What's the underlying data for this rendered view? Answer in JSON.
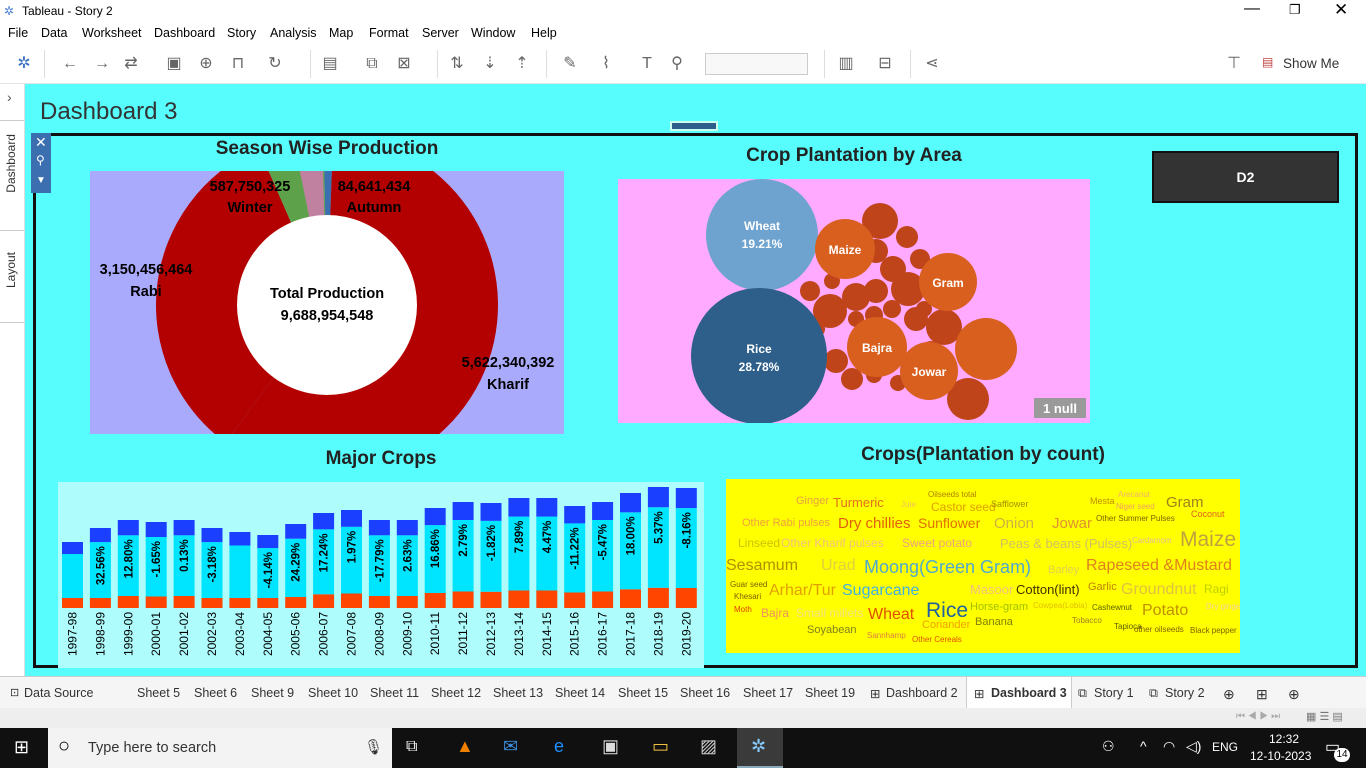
{
  "window": {
    "title": "Tableau - Story 2"
  },
  "menu": [
    "File",
    "Data",
    "Worksheet",
    "Dashboard",
    "Story",
    "Analysis",
    "Map",
    "Format",
    "Server",
    "Window",
    "Help"
  ],
  "toolbar": {
    "show_me": "Show Me"
  },
  "leftrail": {
    "dashboard_tab": "Dashboard",
    "layout_tab": "Layout"
  },
  "dashboard": {
    "title": "Dashboard 3",
    "d2_button": "D2"
  },
  "colors": {
    "canvas": "#57fdfd",
    "kharif": "#b30000",
    "winter": "#5da24b",
    "autumn": "#3a6fb0",
    "rabi_band": "#c080a0",
    "wheat_rice": "#2d5f8a",
    "orange": "#d95f1e",
    "bar_blue": "#1a3fff",
    "bar_cyan": "#00e5ff",
    "bar_orange": "#ff4500",
    "wordcloud_bg": "#ffff00"
  },
  "season_chart": {
    "title": "Season Wise Production",
    "center_label": "Total Production",
    "total": "9,688,954,548",
    "slices": [
      {
        "season": "Kharif",
        "value": "5,622,340,392",
        "num": 5622340392
      },
      {
        "season": "Rabi",
        "value": "3,150,456,464",
        "num": 3150456464
      },
      {
        "season": "Winter",
        "value": "587,750,325",
        "num": 587750325
      },
      {
        "season": "Autumn",
        "value": "84,641,434",
        "num": 84641434
      }
    ]
  },
  "crop_area": {
    "title": "Crop Plantation by Area",
    "bubbles": [
      {
        "name": "Wheat",
        "pct": "19.21%"
      },
      {
        "name": "Rice",
        "pct": "28.78%"
      },
      {
        "name": "Maize",
        "pct": ""
      },
      {
        "name": "Gram",
        "pct": ""
      },
      {
        "name": "Bajra",
        "pct": ""
      },
      {
        "name": "Jowar",
        "pct": ""
      }
    ],
    "null_badge": "1 null"
  },
  "major_crops": {
    "title": "Major Crops",
    "years": [
      "1997-98",
      "1998-99",
      "1999-00",
      "2000-01",
      "2001-02",
      "2002-03",
      "2003-04",
      "2004-05",
      "2005-06",
      "2006-07",
      "2007-08",
      "2008-09",
      "2009-10",
      "2010-11",
      "2011-12",
      "2012-13",
      "2013-14",
      "2014-15",
      "2015-16",
      "2016-17",
      "2017-18",
      "2018-19",
      "2019-20"
    ],
    "labels": [
      "",
      "32.56%",
      "12.80%",
      "-1.65%",
      "0.13%",
      "-3.18%",
      "",
      "-4.14%",
      "24.29%",
      "17.24%",
      "1.97%",
      "-17.79%",
      "2.63%",
      "16.86%",
      "2.79%",
      "-1.82%",
      "7.89%",
      "4.47%",
      "-11.22%",
      "-5.47%",
      "18.00%",
      "5.37%",
      "-8.16%"
    ],
    "heights": [
      66,
      80,
      88,
      86,
      88,
      80,
      76,
      73,
      84,
      95,
      98,
      88,
      88,
      100,
      106,
      105,
      110,
      110,
      102,
      106,
      115,
      121,
      120
    ]
  },
  "crops_count": {
    "title": "Crops(Plantation by count)",
    "words": [
      {
        "t": "Ginger",
        "c": "#e8a040",
        "s": 11
      },
      {
        "t": "Turmeric",
        "c": "#e07020",
        "s": 13
      },
      {
        "t": "Jute",
        "c": "#f0c060",
        "s": 8
      },
      {
        "t": "Oilseeds total",
        "c": "#b08000",
        "s": 8
      },
      {
        "t": "Castor seed",
        "c": "#e0a000",
        "s": 12
      },
      {
        "t": "Safflower",
        "c": "#a09000",
        "s": 9
      },
      {
        "t": "Mesta",
        "c": "#c09000",
        "s": 9
      },
      {
        "t": "Arecanut",
        "c": "#f0b070",
        "s": 8
      },
      {
        "t": "Niger seed",
        "c": "#f0a060",
        "s": 8
      },
      {
        "t": "Gram",
        "c": "#a08020",
        "s": 15
      },
      {
        "t": "Coconut",
        "c": "#e06020",
        "s": 9
      },
      {
        "t": "Other Rabi pulses",
        "c": "#f0a040",
        "s": 11
      },
      {
        "t": "Dry chillies",
        "c": "#e06010",
        "s": 15
      },
      {
        "t": "Sunflower",
        "c": "#e07000",
        "s": 14
      },
      {
        "t": "Onion",
        "c": "#d0b040",
        "s": 15
      },
      {
        "t": "Jowar",
        "c": "#e09030",
        "s": 15
      },
      {
        "t": "Other Summer Pulses",
        "c": "#806000",
        "s": 8
      },
      {
        "t": "Linseed",
        "c": "#d0c000",
        "s": 12
      },
      {
        "t": "Other Kharif pulses",
        "c": "#f0c080",
        "s": 12
      },
      {
        "t": "Sweet potato",
        "c": "#f0a080",
        "s": 12
      },
      {
        "t": "Peas & beans (Pulses)",
        "c": "#d0c060",
        "s": 13
      },
      {
        "t": "Cardamom",
        "c": "#e0c090",
        "s": 8
      },
      {
        "t": "Maize",
        "c": "#c0a040",
        "s": 21
      },
      {
        "t": "Sesamum",
        "c": "#b09000",
        "s": 16
      },
      {
        "t": "Urad",
        "c": "#e0d040",
        "s": 16
      },
      {
        "t": "Moong(Green Gram)",
        "c": "#50a8d0",
        "s": 18
      },
      {
        "t": "Barley",
        "c": "#e0d050",
        "s": 11
      },
      {
        "t": "Rapeseed &Mustard",
        "c": "#e08020",
        "s": 16
      },
      {
        "t": "Guar seed",
        "c": "#806000",
        "s": 8
      },
      {
        "t": "Khesari",
        "c": "#806000",
        "s": 8
      },
      {
        "t": "Arhar/Tur",
        "c": "#e0a000",
        "s": 16
      },
      {
        "t": "Sugarcane",
        "c": "#40b0e0",
        "s": 16
      },
      {
        "t": "Masoor",
        "c": "#f0c080",
        "s": 13
      },
      {
        "t": "Cotton(lint)",
        "c": "#403000",
        "s": 13
      },
      {
        "t": "Garlic",
        "c": "#c08000",
        "s": 11
      },
      {
        "t": "Groundnut",
        "c": "#e0c040",
        "s": 16
      },
      {
        "t": "Ragi",
        "c": "#c0d000",
        "s": 12
      },
      {
        "t": "Moth",
        "c": "#e04000",
        "s": 8
      },
      {
        "t": "Bajra",
        "c": "#f09060",
        "s": 12
      },
      {
        "t": "Small millets",
        "c": "#f0e080",
        "s": 12
      },
      {
        "t": "Wheat",
        "c": "#e05000",
        "s": 16
      },
      {
        "t": "Rice",
        "c": "#2060a0",
        "s": 21
      },
      {
        "t": "Horse-gram",
        "c": "#a0c000",
        "s": 11
      },
      {
        "t": "Cowpea(Lobia)",
        "c": "#e0c000",
        "s": 8
      },
      {
        "t": "Cashewnut",
        "c": "#606000",
        "s": 8
      },
      {
        "t": "Potato",
        "c": "#c09000",
        "s": 16
      },
      {
        "t": "Dry ginger",
        "c": "#f0d0a0",
        "s": 8
      },
      {
        "t": "Coriander",
        "c": "#f0a000",
        "s": 11
      },
      {
        "t": "Banana",
        "c": "#808000",
        "s": 11
      },
      {
        "t": "Tobacco",
        "c": "#a08020",
        "s": 8
      },
      {
        "t": "Tapioca",
        "c": "#606000",
        "s": 8
      },
      {
        "t": "other oilseeds",
        "c": "#806000",
        "s": 8
      },
      {
        "t": "Black pepper",
        "c": "#806000",
        "s": 8
      },
      {
        "t": "Soyabean",
        "c": "#808020",
        "s": 11
      },
      {
        "t": "Sannhamp",
        "c": "#e08040",
        "s": 8
      },
      {
        "t": "Other Cereals",
        "c": "#e05000",
        "s": 8
      }
    ]
  },
  "sheettabs": [
    "Data Source",
    "Sheet 5",
    "Sheet 6",
    "Sheet 9",
    "Sheet 10",
    "Sheet 11",
    "Sheet 12",
    "Sheet 13",
    "Sheet 14",
    "Sheet 15",
    "Sheet 16",
    "Sheet 17",
    "Sheet 19",
    "Dashboard 2",
    "Dashboard 3",
    "Story 1",
    "Story 2"
  ],
  "taskbar": {
    "search_placeholder": "Type here to search",
    "lang": "ENG",
    "time": "12:32",
    "date": "12-10-2023",
    "notif_count": "14"
  }
}
